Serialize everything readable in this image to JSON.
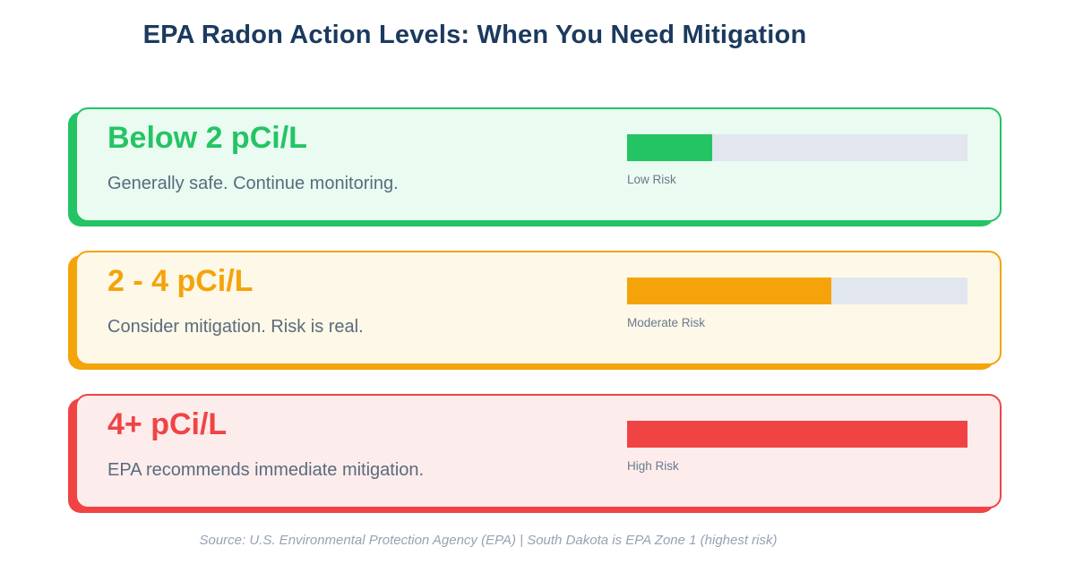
{
  "page": {
    "title": "EPA Radon Action Levels: When You Need Mitigation",
    "footer": "Source: U.S. Environmental Protection Agency (EPA) | South Dakota is EPA Zone 1 (highest risk)"
  },
  "colors": {
    "title_navy": "#1b3a5f",
    "description_gray": "#5a6b7c",
    "risk_label_gray": "#6b7a8d",
    "footer_gray": "#98a2b3",
    "bar_track": "#e2e6ee",
    "low_accent": "#24c464",
    "low_background": "#eafbf1",
    "moderate_accent": "#f5a30a",
    "moderate_background": "#fdf8e7",
    "high_accent": "#f04444",
    "high_background": "#fdecec"
  },
  "cards": [
    {
      "level": "Below 2 pCi/L",
      "description": "Generally safe. Continue monitoring.",
      "risk_label": "Low Risk",
      "fill_percent": 25,
      "accent_color": "#24c464",
      "background_color": "#eafbf1"
    },
    {
      "level": "2 - 4 pCi/L",
      "description": "Consider mitigation. Risk is real.",
      "risk_label": "Moderate Risk",
      "fill_percent": 60,
      "accent_color": "#f5a30a",
      "background_color": "#fdf8e7"
    },
    {
      "level": "4+ pCi/L",
      "description": "EPA recommends immediate mitigation.",
      "risk_label": "High Risk",
      "fill_percent": 100,
      "accent_color": "#f04444",
      "background_color": "#fdecec"
    }
  ],
  "chart_data": {
    "type": "bar",
    "title": "EPA Radon Action Levels: When You Need Mitigation",
    "categories": [
      "Below 2 pCi/L",
      "2 - 4 pCi/L",
      "4+ pCi/L"
    ],
    "values": [
      25,
      60,
      100
    ],
    "value_meaning": "relative risk bar fill, percent of track width",
    "labels": [
      "Low Risk",
      "Moderate Risk",
      "High Risk"
    ],
    "annotations": [
      "Generally safe. Continue monitoring.",
      "Consider mitigation. Risk is real.",
      "EPA recommends immediate mitigation."
    ],
    "series_colors": [
      "#24c464",
      "#f5a30a",
      "#f04444"
    ],
    "orientation": "horizontal",
    "xlim": [
      0,
      100
    ],
    "grid": false,
    "legend_position": "none",
    "source_note": "Source: U.S. Environmental Protection Agency (EPA) | South Dakota is EPA Zone 1 (highest risk)"
  }
}
